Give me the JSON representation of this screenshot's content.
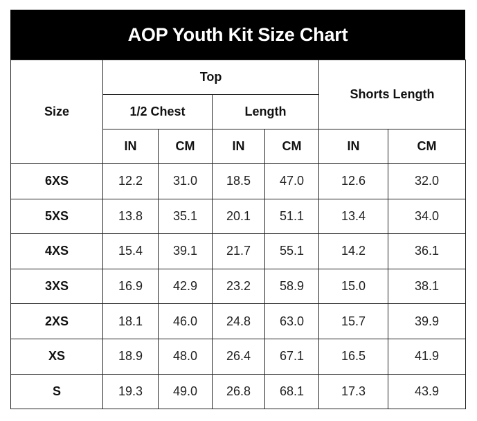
{
  "title": "AOP Youth Kit Size Chart",
  "headers": {
    "size": "Size",
    "top": "Top",
    "chest": "1/2 Chest",
    "length": "Length",
    "shorts": "Shorts Length",
    "units": [
      "IN",
      "CM",
      "IN",
      "CM",
      "IN",
      "CM"
    ]
  },
  "rows": [
    {
      "size": "6XS",
      "values": [
        "12.2",
        "31.0",
        "18.5",
        "47.0",
        "12.6",
        "32.0"
      ]
    },
    {
      "size": "5XS",
      "values": [
        "13.8",
        "35.1",
        "20.1",
        "51.1",
        "13.4",
        "34.0"
      ]
    },
    {
      "size": "4XS",
      "values": [
        "15.4",
        "39.1",
        "21.7",
        "55.1",
        "14.2",
        "36.1"
      ]
    },
    {
      "size": "3XS",
      "values": [
        "16.9",
        "42.9",
        "23.2",
        "58.9",
        "15.0",
        "38.1"
      ]
    },
    {
      "size": "2XS",
      "values": [
        "18.1",
        "46.0",
        "24.8",
        "63.0",
        "15.7",
        "39.9"
      ]
    },
    {
      "size": "XS",
      "values": [
        "18.9",
        "48.0",
        "26.4",
        "67.1",
        "16.5",
        "41.9"
      ]
    },
    {
      "size": "S",
      "values": [
        "19.3",
        "49.0",
        "26.8",
        "68.1",
        "17.3",
        "43.9"
      ]
    }
  ]
}
